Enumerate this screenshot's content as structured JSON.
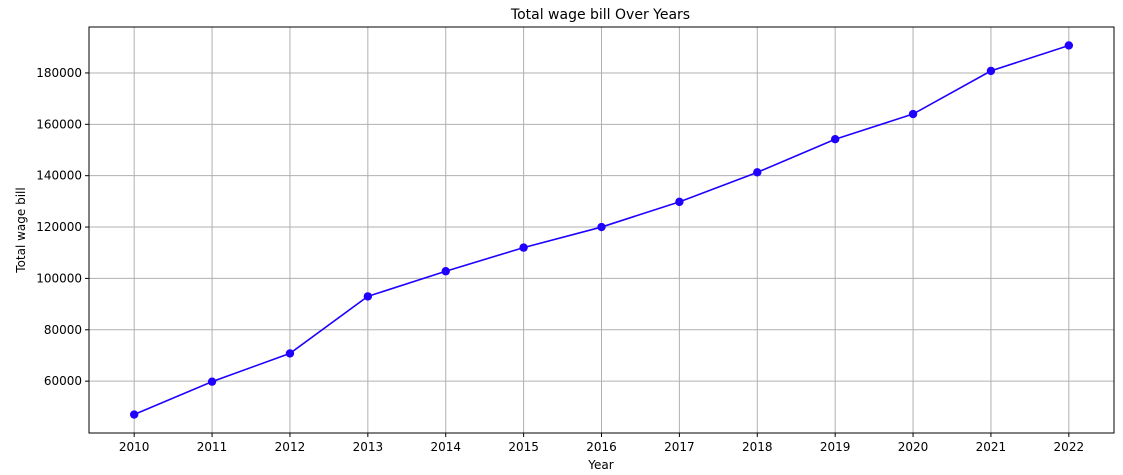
{
  "chart_data": {
    "type": "line",
    "title": "Total wage bill Over Years",
    "xlabel": "Year",
    "ylabel": "Total wage bill",
    "x": [
      2010,
      2011,
      2012,
      2013,
      2014,
      2015,
      2016,
      2017,
      2018,
      2019,
      2020,
      2021,
      2022
    ],
    "x_tick_labels": [
      "2010",
      "2011",
      "2012",
      "2013",
      "2014",
      "2015",
      "2016",
      "2017",
      "2018",
      "2019",
      "2020",
      "2021",
      "2022"
    ],
    "series": [
      {
        "values": [
          47000,
          59800,
          70800,
          93000,
          102800,
          112000,
          120000,
          129800,
          141300,
          154200,
          164000,
          180800,
          190700
        ],
        "color": "#1f00ff",
        "marker": "circle"
      }
    ],
    "y_ticks": [
      60000,
      80000,
      100000,
      120000,
      140000,
      160000,
      180000
    ],
    "y_tick_labels": [
      "60000",
      "80000",
      "100000",
      "120000",
      "140000",
      "160000",
      "180000"
    ],
    "xlim": [
      2009.42,
      2022.58
    ],
    "ylim": [
      39810,
      197890
    ],
    "grid": true,
    "legend": false
  }
}
